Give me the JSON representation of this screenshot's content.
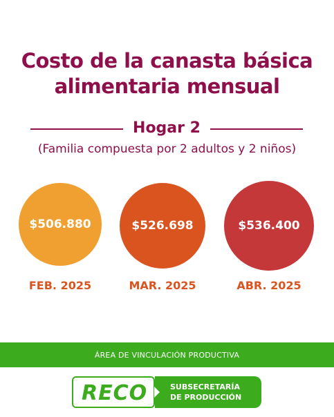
{
  "title": {
    "line1": "Costo de la canasta básica",
    "line2": "alimentaria mensual"
  },
  "household": {
    "label": "Hogar 2",
    "description": "(Familia compuesta por 2 adultos y 2 niños)"
  },
  "costs": [
    {
      "value": "$506.880",
      "month": "FEB. 2025",
      "color": "#f0a030"
    },
    {
      "value": "$526.698",
      "month": "MAR. 2025",
      "color": "#d9541f"
    },
    {
      "value": "$536.400",
      "month": "ABR. 2025",
      "color": "#c4383a"
    }
  ],
  "footer": {
    "band_text": "ÁREA DE VINCULACIÓN PRODUCTIVA",
    "logo_text": "RECO",
    "org_line1": "SUBSECRETARÍA",
    "org_line2": "DE PRODUCCIÓN"
  },
  "colors": {
    "title": "#8e0f4a",
    "accent_green": "#3cab1e",
    "month_label": "#d9541f"
  }
}
